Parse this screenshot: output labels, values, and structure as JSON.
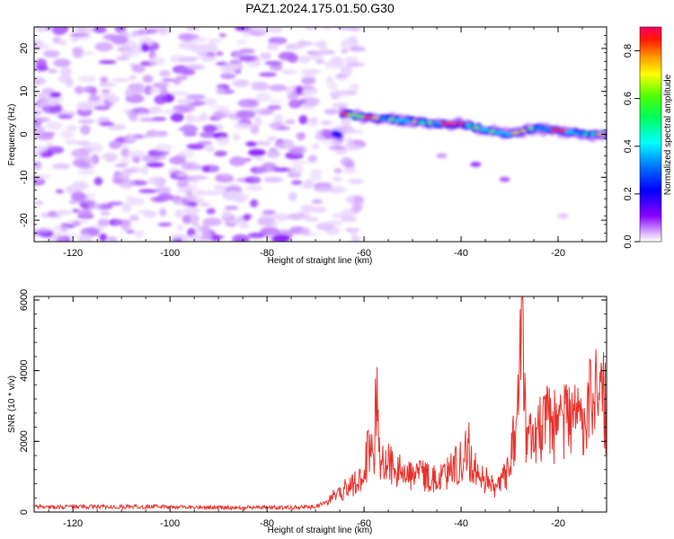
{
  "title": "PAZ1.2024.175.01.50.G30",
  "chart_data": [
    {
      "type": "heatmap",
      "xlabel": "Height of straight line (km)",
      "ylabel": "Frequency (Hz)",
      "xlim": [
        -128,
        -10
      ],
      "ylim": [
        -25,
        25
      ],
      "xticks": [
        -120,
        -100,
        -80,
        -60,
        -40,
        -20
      ],
      "yticks": [
        -20,
        -10,
        0,
        10,
        20
      ],
      "colorbar": {
        "label": "Normalized spectral amplitude",
        "ticks": [
          0.0,
          0.2,
          0.4,
          0.6,
          0.8
        ],
        "tick_labels": [
          "0.0",
          "0.2",
          "0.4",
          "0.6",
          "0.8"
        ],
        "range": [
          0,
          0.9
        ],
        "colormap": "gist_rainbow_r"
      },
      "signal_track": {
        "description_points": [
          [
            -65,
            5
          ],
          [
            -60,
            4
          ],
          [
            -55,
            3.5
          ],
          [
            -50,
            3
          ],
          [
            -45,
            2.5
          ],
          [
            -40,
            2.5
          ],
          [
            -35,
            1
          ],
          [
            -30,
            0
          ],
          [
            -25,
            1.5
          ],
          [
            -20,
            1
          ],
          [
            -15,
            0
          ],
          [
            -10,
            0
          ]
        ],
        "noise_region_x": [
          -128,
          -65
        ],
        "peak_value": 0.9
      }
    },
    {
      "type": "line",
      "xlabel": "Height of straight line (km)",
      "ylabel": "SNR (10 * v/v)",
      "xlim": [
        -128,
        -10
      ],
      "ylim": [
        0,
        6100
      ],
      "xticks": [
        -120,
        -100,
        -80,
        -60,
        -40,
        -20
      ],
      "yticks": [
        0,
        2000,
        4000,
        6000
      ],
      "color": "#e8302a",
      "series": [
        {
          "x": [
            -128,
            -120,
            -110,
            -100,
            -90,
            -80,
            -75,
            -70,
            -68,
            -66,
            -64,
            -62,
            -60,
            -59,
            -58,
            -57.3,
            -57,
            -56,
            -55,
            -54,
            -52,
            -50,
            -48,
            -46,
            -44,
            -42,
            -40,
            -38.5,
            -38,
            -36,
            -34,
            -33,
            -32,
            -30,
            -29,
            -28,
            -27.5,
            -27,
            -26.5,
            -26,
            -25,
            -24,
            -22,
            -20,
            -18,
            -17,
            -16,
            -14,
            -12,
            -11,
            -10
          ],
          "y": [
            150,
            150,
            150,
            150,
            130,
            130,
            130,
            150,
            260,
            480,
            650,
            800,
            1200,
            1800,
            1600,
            4100,
            1700,
            1300,
            1400,
            1200,
            1100,
            1000,
            1100,
            900,
            1000,
            1200,
            1400,
            1950,
            1400,
            1000,
            800,
            700,
            1000,
            1200,
            2300,
            3500,
            6050,
            2900,
            2400,
            2200,
            1700,
            2200,
            2600,
            2300,
            2600,
            2900,
            2500,
            3000,
            3300,
            3950,
            2700
          ]
        }
      ]
    }
  ]
}
